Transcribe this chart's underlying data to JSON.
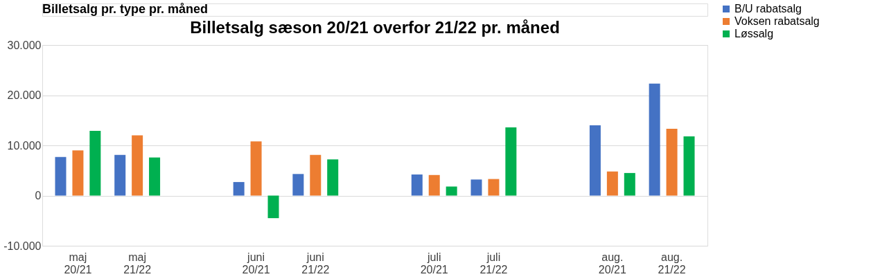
{
  "chart_data": {
    "type": "bar",
    "title": "Billetsalg sæson 20/21 overfor 21/22 pr. måned",
    "annotations": [
      "Billetsalg pr. type pr. måned"
    ],
    "categories": [
      "maj 20/21",
      "maj 21/22",
      null,
      "juni 20/21",
      "juni 21/22",
      null,
      "juli 20/21",
      "juli 21/22",
      null,
      "aug. 20/21",
      "aug. 21/22"
    ],
    "series": [
      {
        "name": "B/U rabatsalg",
        "color": "#4472c4",
        "values": [
          7700,
          8100,
          null,
          2700,
          4300,
          null,
          4200,
          3200,
          null,
          14000,
          22300
        ]
      },
      {
        "name": "Voksen rabatsalg",
        "color": "#ed7d31",
        "values": [
          9000,
          12000,
          null,
          10800,
          8100,
          null,
          4100,
          3300,
          null,
          4800,
          13300
        ]
      },
      {
        "name": "Løssalg",
        "color": "#00b050",
        "values": [
          12900,
          7600,
          null,
          -4500,
          7200,
          null,
          1800,
          13600,
          null,
          4500,
          11800
        ]
      }
    ],
    "ylim": [
      -10000,
      30000
    ],
    "yticks": [
      {
        "value": -10000,
        "label": "-10.000"
      },
      {
        "value": 0,
        "label": "0"
      },
      {
        "value": 10000,
        "label": "10.000"
      },
      {
        "value": 20000,
        "label": "20.000"
      },
      {
        "value": 30000,
        "label": "30.000"
      }
    ],
    "grid": "y",
    "legend": "right"
  }
}
